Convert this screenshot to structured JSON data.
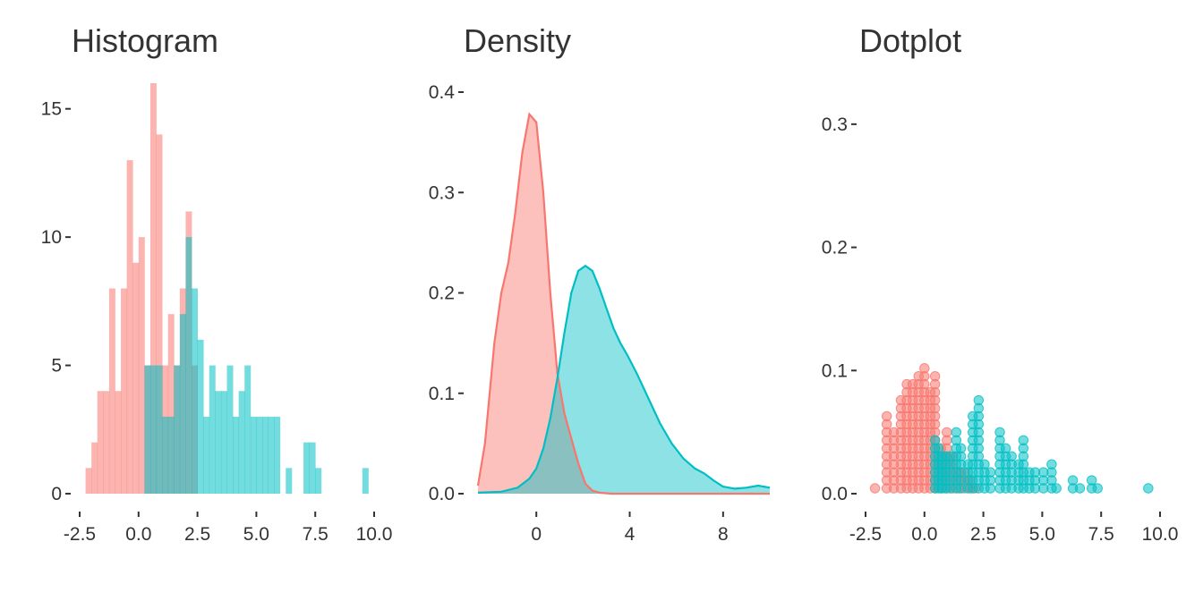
{
  "colors": {
    "groupA": "#F8766D",
    "groupB": "#00BFC4",
    "text": "#333333"
  },
  "chart_data": [
    {
      "type": "bar",
      "title": "Histogram",
      "xlabel": "",
      "ylabel": "",
      "bin_width": 0.25,
      "xlim": [
        -2.5,
        10.0
      ],
      "ylim": [
        0,
        16
      ],
      "xticks": [
        "-2.5",
        "0.0",
        "2.5",
        "5.0",
        "7.5",
        "10.0"
      ],
      "yticks": [
        "0",
        "5",
        "10",
        "15"
      ],
      "series": [
        {
          "name": "",
          "color": "#F8766D",
          "bin_starts": [
            -2.25,
            -2.0,
            -1.75,
            -1.5,
            -1.25,
            -1.0,
            -0.75,
            -0.5,
            -0.25,
            0.0,
            0.25,
            0.5,
            0.75,
            1.0,
            1.25,
            1.5,
            1.75,
            2.0,
            2.25
          ],
          "counts": [
            1,
            2,
            4,
            4,
            8,
            4,
            8,
            13,
            9,
            10,
            5,
            16,
            14,
            5,
            7,
            5,
            8,
            11,
            5
          ]
        },
        {
          "name": "",
          "color": "#00BFC4",
          "bin_starts": [
            0.25,
            0.5,
            0.75,
            1.0,
            1.25,
            1.5,
            1.75,
            2.0,
            2.25,
            2.5,
            2.75,
            3.0,
            3.25,
            3.5,
            3.75,
            4.0,
            4.25,
            4.5,
            4.75,
            5.0,
            5.25,
            5.5,
            5.75,
            6.25,
            7.0,
            7.25,
            7.5,
            9.5
          ],
          "counts": [
            5,
            5,
            5,
            3,
            3,
            5,
            7,
            10,
            8,
            6,
            3,
            5,
            4,
            4,
            5,
            3,
            4,
            5,
            3,
            3,
            3,
            3,
            3,
            1,
            2,
            2,
            1,
            1
          ]
        }
      ]
    },
    {
      "type": "area",
      "title": "Density",
      "xlabel": "",
      "ylabel": "",
      "xlim": [
        -2.5,
        10.0
      ],
      "ylim": [
        0,
        0.4
      ],
      "xticks": [
        "0",
        "4",
        "8"
      ],
      "yticks": [
        "0.0",
        "0.1",
        "0.2",
        "0.3",
        "0.4"
      ],
      "series": [
        {
          "name": "",
          "color": "#F8766D",
          "x": [
            -2.5,
            -2.2,
            -1.8,
            -1.5,
            -1.2,
            -0.9,
            -0.6,
            -0.3,
            0.0,
            0.3,
            0.6,
            0.9,
            1.2,
            1.5,
            1.8,
            2.1,
            2.4,
            2.7,
            3.2,
            4.0,
            6.0,
            8.0,
            10.0
          ],
          "y": [
            0.008,
            0.05,
            0.15,
            0.2,
            0.23,
            0.28,
            0.34,
            0.378,
            0.37,
            0.3,
            0.2,
            0.12,
            0.08,
            0.055,
            0.03,
            0.01,
            0.003,
            0.001,
            0.0,
            0.0,
            0.0,
            0.0,
            0.0
          ]
        },
        {
          "name": "",
          "color": "#00BFC4",
          "x": [
            -2.5,
            -1.5,
            -0.8,
            -0.3,
            0.0,
            0.3,
            0.6,
            0.9,
            1.2,
            1.5,
            1.8,
            2.1,
            2.4,
            2.7,
            3.0,
            3.3,
            3.6,
            3.9,
            4.3,
            4.8,
            5.3,
            5.8,
            6.3,
            6.8,
            7.2,
            7.6,
            8.0,
            8.5,
            9.0,
            9.5,
            10.0
          ],
          "y": [
            0.001,
            0.002,
            0.006,
            0.015,
            0.025,
            0.045,
            0.075,
            0.115,
            0.16,
            0.2,
            0.222,
            0.227,
            0.222,
            0.205,
            0.185,
            0.165,
            0.15,
            0.138,
            0.12,
            0.095,
            0.07,
            0.05,
            0.035,
            0.025,
            0.02,
            0.013,
            0.007,
            0.005,
            0.006,
            0.008,
            0.006
          ]
        }
      ]
    },
    {
      "type": "scatter",
      "title": "Dotplot",
      "xlabel": "",
      "ylabel": "",
      "dot_unit": 0.0065,
      "xlim": [
        -2.5,
        10.0
      ],
      "ylim": [
        0,
        0.35
      ],
      "xticks": [
        "-2.5",
        "0.0",
        "2.5",
        "5.0",
        "7.5",
        "10.0"
      ],
      "yticks": [
        "0.0",
        "0.1",
        "0.2",
        "0.3"
      ],
      "series": [
        {
          "name": "",
          "color": "#F8766D",
          "stacks": [
            [
              -2.1,
              1
            ],
            [
              -1.6,
              10
            ],
            [
              -1.3,
              8
            ],
            [
              -1.0,
              12
            ],
            [
              -0.75,
              14
            ],
            [
              -0.5,
              14
            ],
            [
              -0.25,
              15
            ],
            [
              0.0,
              16
            ],
            [
              0.25,
              13
            ],
            [
              0.45,
              15
            ],
            [
              0.7,
              6
            ],
            [
              0.95,
              8
            ],
            [
              1.2,
              5
            ],
            [
              1.45,
              3
            ],
            [
              1.7,
              3
            ],
            [
              1.95,
              2
            ],
            [
              2.15,
              1
            ]
          ]
        },
        {
          "name": "",
          "color": "#00BFC4",
          "stacks": [
            [
              0.45,
              7
            ],
            [
              0.6,
              6
            ],
            [
              0.75,
              5
            ],
            [
              0.9,
              5
            ],
            [
              1.1,
              5
            ],
            [
              1.35,
              8
            ],
            [
              1.55,
              6
            ],
            [
              1.85,
              4
            ],
            [
              2.05,
              10
            ],
            [
              2.3,
              12
            ],
            [
              2.55,
              4
            ],
            [
              2.8,
              3
            ],
            [
              3.2,
              8
            ],
            [
              3.45,
              6
            ],
            [
              3.7,
              5
            ],
            [
              4.0,
              4
            ],
            [
              4.2,
              7
            ],
            [
              4.45,
              3
            ],
            [
              4.7,
              3
            ],
            [
              5.05,
              3
            ],
            [
              5.4,
              4
            ],
            [
              5.6,
              1
            ],
            [
              6.3,
              2
            ],
            [
              6.6,
              1
            ],
            [
              7.1,
              2
            ],
            [
              7.35,
              1
            ],
            [
              9.5,
              1
            ]
          ]
        }
      ]
    }
  ]
}
